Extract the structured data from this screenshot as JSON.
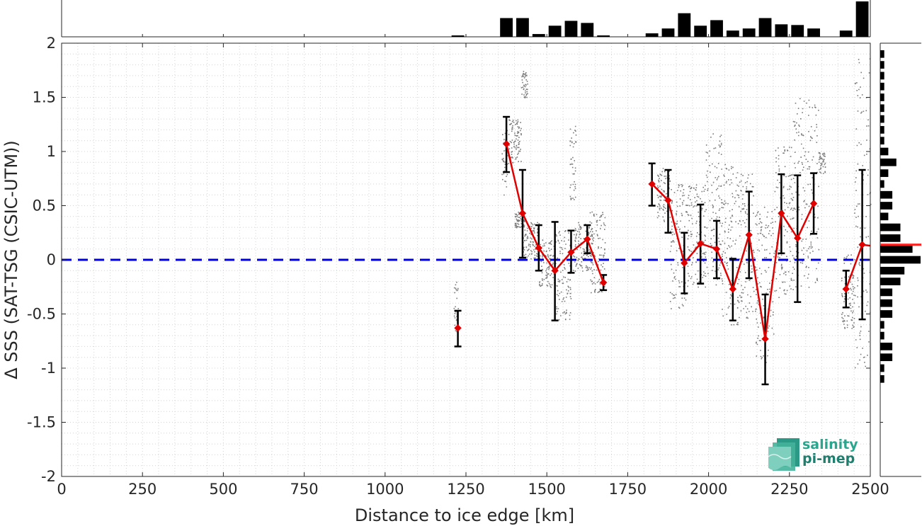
{
  "chart_data": {
    "type": "line",
    "xlabel": "Distance to ice edge [km]",
    "ylabel": "Δ SSS (SAT-TSG (CSIC-UTM))",
    "xlim": [
      0,
      2500
    ],
    "ylim": [
      -2,
      2
    ],
    "xticks": [
      0,
      250,
      500,
      750,
      1000,
      1250,
      1500,
      1750,
      2000,
      2250,
      2500
    ],
    "yticks": [
      -2,
      -1.5,
      -1,
      -0.5,
      0,
      0.5,
      1,
      1.5,
      2
    ],
    "grid": true,
    "zero_line": {
      "y": 0,
      "color": "#0000dd",
      "style": "dashed"
    },
    "series": [
      {
        "color": "#e00000",
        "marker": "diamond",
        "segments": [
          [
            {
              "x": 1225,
              "y": -0.63,
              "err_lo": -0.8,
              "err_hi": -0.47
            }
          ],
          [
            {
              "x": 1375,
              "y": 1.07,
              "err_lo": 0.81,
              "err_hi": 1.32
            },
            {
              "x": 1425,
              "y": 0.43,
              "err_lo": 0.02,
              "err_hi": 0.83
            },
            {
              "x": 1475,
              "y": 0.11,
              "err_lo": -0.1,
              "err_hi": 0.32
            },
            {
              "x": 1525,
              "y": -0.1,
              "err_lo": -0.56,
              "err_hi": 0.35
            },
            {
              "x": 1575,
              "y": 0.07,
              "err_lo": -0.12,
              "err_hi": 0.27
            },
            {
              "x": 1625,
              "y": 0.19,
              "err_lo": 0.06,
              "err_hi": 0.32
            },
            {
              "x": 1675,
              "y": -0.21,
              "err_lo": -0.28,
              "err_hi": -0.14
            }
          ],
          [
            {
              "x": 1825,
              "y": 0.7,
              "err_lo": 0.5,
              "err_hi": 0.89
            },
            {
              "x": 1875,
              "y": 0.55,
              "err_lo": 0.25,
              "err_hi": 0.83
            },
            {
              "x": 1925,
              "y": -0.03,
              "err_lo": -0.31,
              "err_hi": 0.25
            },
            {
              "x": 1975,
              "y": 0.15,
              "err_lo": -0.22,
              "err_hi": 0.51
            },
            {
              "x": 2025,
              "y": 0.1,
              "err_lo": -0.17,
              "err_hi": 0.36
            },
            {
              "x": 2075,
              "y": -0.27,
              "err_lo": -0.56,
              "err_hi": 0.01
            },
            {
              "x": 2125,
              "y": 0.23,
              "err_lo": -0.17,
              "err_hi": 0.63
            },
            {
              "x": 2175,
              "y": -0.73,
              "err_lo": -1.15,
              "err_hi": -0.32
            },
            {
              "x": 2225,
              "y": 0.43,
              "err_lo": 0.06,
              "err_hi": 0.79
            },
            {
              "x": 2275,
              "y": 0.2,
              "err_lo": -0.39,
              "err_hi": 0.78
            },
            {
              "x": 2325,
              "y": 0.52,
              "err_lo": 0.24,
              "err_hi": 0.8
            }
          ],
          [
            {
              "x": 2425,
              "y": -0.27,
              "err_lo": -0.44,
              "err_hi": -0.1
            },
            {
              "x": 2475,
              "y": 0.14,
              "err_lo": -0.55,
              "err_hi": 0.83
            },
            {
              "x": 2500,
              "y": 0.13
            }
          ]
        ]
      }
    ],
    "scatter_clusters": [
      {
        "x0": 1210,
        "x1": 1225,
        "y0": -0.66,
        "y1": -0.2
      },
      {
        "x0": 1360,
        "x1": 1380,
        "y0": 0.6,
        "y1": 1.2
      },
      {
        "x0": 1380,
        "x1": 1420,
        "y0": 0.9,
        "y1": 1.3
      },
      {
        "x0": 1400,
        "x1": 1430,
        "y0": 0.3,
        "y1": 0.45
      },
      {
        "x0": 1420,
        "x1": 1440,
        "y0": 1.5,
        "y1": 1.75
      },
      {
        "x0": 1425,
        "x1": 1475,
        "y0": 0.0,
        "y1": 0.35
      },
      {
        "x0": 1475,
        "x1": 1525,
        "y0": -0.25,
        "y1": 0.2
      },
      {
        "x0": 1525,
        "x1": 1575,
        "y0": -0.55,
        "y1": 0.3
      },
      {
        "x0": 1570,
        "x1": 1590,
        "y0": 0.55,
        "y1": 1.25
      },
      {
        "x0": 1580,
        "x1": 1640,
        "y0": -0.1,
        "y1": 0.35
      },
      {
        "x0": 1630,
        "x1": 1680,
        "y0": -0.3,
        "y1": 0.45
      },
      {
        "x0": 1840,
        "x1": 1880,
        "y0": 0.35,
        "y1": 0.85
      },
      {
        "x0": 1880,
        "x1": 1930,
        "y0": -0.45,
        "y1": 0.7
      },
      {
        "x0": 1930,
        "x1": 1990,
        "y0": -0.25,
        "y1": 0.7
      },
      {
        "x0": 1990,
        "x1": 2040,
        "y0": -0.25,
        "y1": 1.2
      },
      {
        "x0": 2040,
        "x1": 2090,
        "y0": -0.6,
        "y1": 0.9
      },
      {
        "x0": 2090,
        "x1": 2140,
        "y0": -0.55,
        "y1": 0.8
      },
      {
        "x0": 2140,
        "x1": 2200,
        "y0": -0.95,
        "y1": 0.5
      },
      {
        "x0": 2200,
        "x1": 2260,
        "y0": -0.35,
        "y1": 1.05
      },
      {
        "x0": 2260,
        "x1": 2340,
        "y0": -0.25,
        "y1": 1.5
      },
      {
        "x0": 2340,
        "x1": 2360,
        "y0": 0.8,
        "y1": 1.0
      },
      {
        "x0": 2410,
        "x1": 2450,
        "y0": -0.65,
        "y1": 0.05
      },
      {
        "x0": 2450,
        "x1": 2500,
        "y0": -1.0,
        "y1": 1.9
      }
    ],
    "top_histogram": {
      "bin_centers": [
        1225,
        1275,
        1325,
        1375,
        1425,
        1475,
        1525,
        1575,
        1625,
        1675,
        1725,
        1775,
        1825,
        1875,
        1925,
        1975,
        2025,
        2075,
        2125,
        2175,
        2225,
        2275,
        2325,
        2375,
        2425,
        2475
      ],
      "counts": [
        2,
        0,
        0,
        27,
        27,
        4,
        16,
        23,
        20,
        2,
        0,
        0,
        5,
        12,
        34,
        16,
        24,
        9,
        12,
        27,
        18,
        17,
        12,
        0,
        9,
        51
      ]
    },
    "side_histogram": {
      "bin_centers": [
        1.9,
        1.8,
        1.7,
        1.6,
        1.5,
        1.4,
        1.3,
        1.2,
        1.1,
        1.0,
        0.9,
        0.8,
        0.7,
        0.6,
        0.5,
        0.4,
        0.3,
        0.2,
        0.1,
        0.0,
        -0.1,
        -0.2,
        -0.3,
        -0.4,
        -0.5,
        -0.6,
        -0.7,
        -0.8,
        -0.9,
        -1.0,
        -1.1,
        -1.2,
        -1.3,
        -1.4,
        -1.5,
        -1.6,
        -1.7,
        -1.8,
        -1.9
      ],
      "counts": [
        1,
        1,
        1,
        1,
        1,
        1,
        1,
        1,
        1,
        2,
        4,
        2,
        1,
        3,
        3,
        2,
        5,
        5,
        8,
        10,
        6,
        5,
        3,
        3,
        3,
        1,
        1,
        3,
        3,
        1,
        1,
        0,
        0,
        0,
        0,
        0,
        0,
        0,
        0
      ],
      "median_marker": 0.14
    }
  },
  "logo": {
    "line1": "salinity",
    "line2": "pi-mep"
  }
}
